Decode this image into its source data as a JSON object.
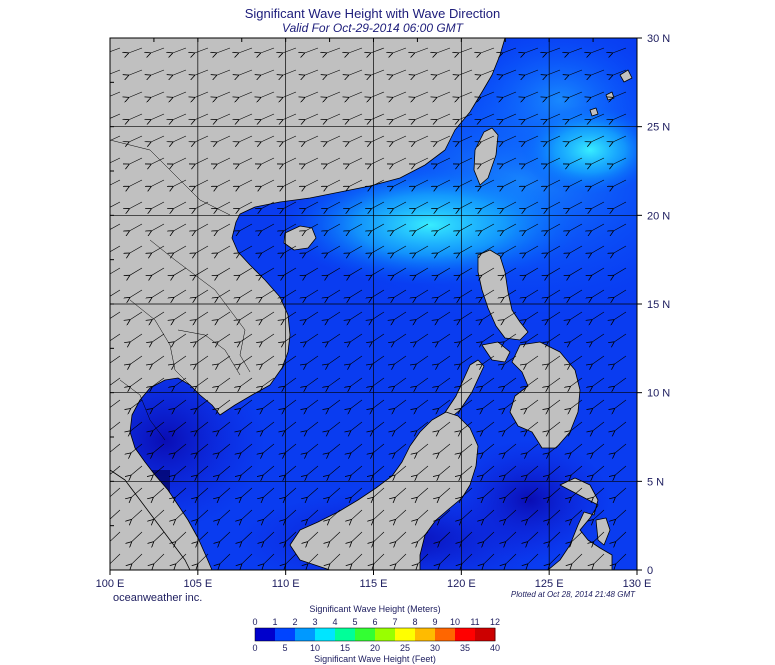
{
  "title": "Significant Wave Height with Wave Direction",
  "subtitle": "Valid For Oct-29-2014 06:00 GMT",
  "credit": "oceanweather inc.",
  "plotted": "Plotted at Oct 28, 2014 21:48 GMT",
  "axes": {
    "lon_labels": [
      "100 E",
      "105 E",
      "110 E",
      "115 E",
      "120 E",
      "125 E",
      "130 E"
    ],
    "lat_labels": [
      "0",
      "5 N",
      "10 N",
      "15 N",
      "20 N",
      "25 N",
      "30 N"
    ],
    "lon_range": [
      100,
      130
    ],
    "lat_range": [
      0,
      30
    ]
  },
  "legend": {
    "meters_title": "Significant Wave Height (Meters)",
    "feet_title": "Significant Wave Height (Feet)",
    "meters_ticks": [
      "0",
      "1",
      "2",
      "3",
      "4",
      "5",
      "6",
      "7",
      "8",
      "9",
      "10",
      "11",
      "12"
    ],
    "feet_ticks": [
      "0",
      "5",
      "10",
      "15",
      "20",
      "25",
      "30",
      "35",
      "40"
    ],
    "colors": [
      "#0000cc",
      "#0044ff",
      "#0099ff",
      "#00e5ff",
      "#00ff99",
      "#33ff33",
      "#99ff00",
      "#ffff00",
      "#ffbb00",
      "#ff6600",
      "#ff0000",
      "#cc0000"
    ]
  },
  "colors": {
    "land": "#c0c0c0",
    "coast": "#000000",
    "grid": "#000000",
    "sea_low": "#0a14cc",
    "sea_mid": "#0055ff",
    "sea_high": "#18b8ff",
    "sea_peak": "#2ef0ff"
  }
}
